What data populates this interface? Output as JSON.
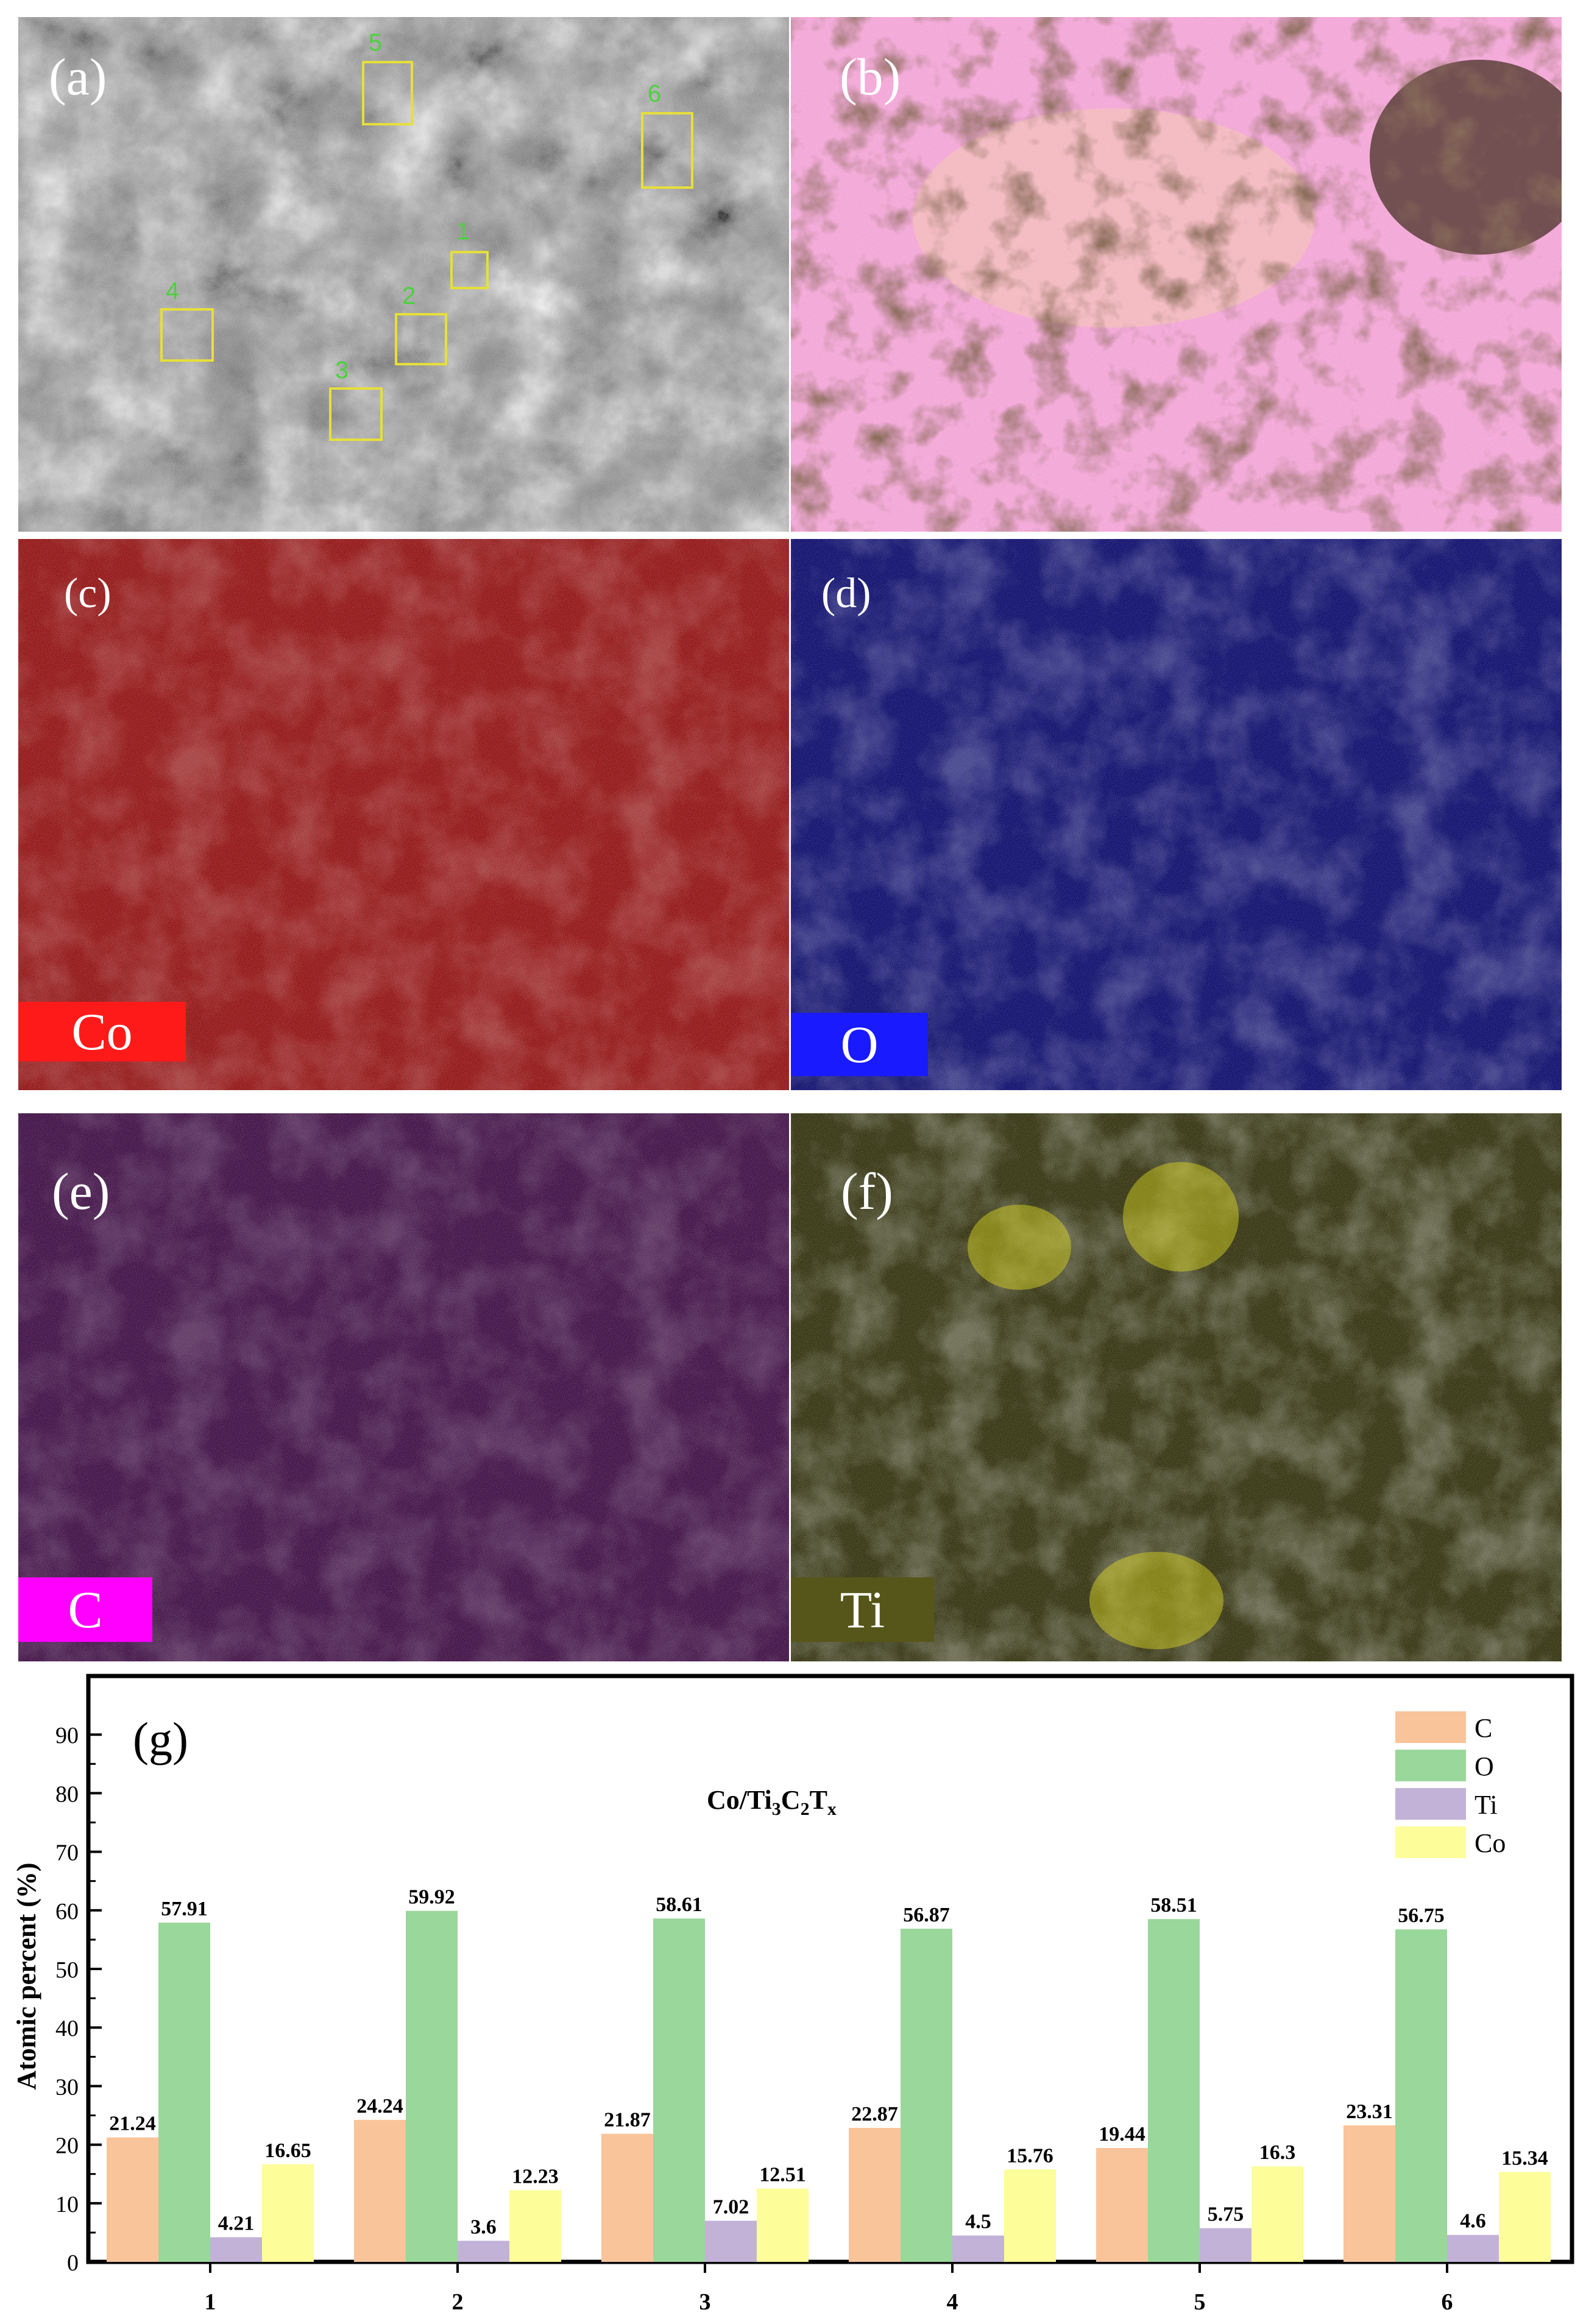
{
  "panels": {
    "a": {
      "label": "(a)",
      "roi_numbers": [
        "1",
        "2",
        "3",
        "4",
        "5",
        "6"
      ]
    },
    "b": {
      "label": "(b)"
    },
    "c": {
      "label": "(c)",
      "element": "Co",
      "tag_color": "#ff1a1a",
      "map_color": "#c01010"
    },
    "d": {
      "label": "(d)",
      "element": "O",
      "tag_color": "#1a1aff",
      "map_color": "#1e1ec8"
    },
    "e": {
      "label": "(e)",
      "element": "C",
      "tag_color": "#ff00ff",
      "map_color": "#a020b0"
    },
    "f": {
      "label": "(f)",
      "element": "Ti",
      "tag_color": "#56561a",
      "map_color": "#d8d41a"
    }
  },
  "chart_data": {
    "type": "bar",
    "panel_label": "(g)",
    "title": "Co/Ti3C2Tx",
    "title_parts": {
      "main": "Co/Ti",
      "s1": "3",
      "c": "C",
      "s2": "2",
      "t": "T",
      "s3": "x"
    },
    "ylabel": "Atomic percent (%)",
    "xlabel": "",
    "ylim": [
      0,
      100
    ],
    "yticks": [
      0,
      10,
      20,
      30,
      40,
      50,
      60,
      70,
      80,
      90
    ],
    "grid": false,
    "legend_position": "top-right",
    "categories": [
      "1",
      "2",
      "3",
      "4",
      "5",
      "6"
    ],
    "series": [
      {
        "name": "C",
        "color": "#f9c49a",
        "values": [
          21.24,
          24.24,
          21.87,
          22.87,
          19.44,
          23.31
        ]
      },
      {
        "name": "O",
        "color": "#9ad79a",
        "values": [
          57.91,
          59.92,
          58.61,
          56.87,
          58.51,
          56.75
        ]
      },
      {
        "name": "Ti",
        "color": "#c2b2d8",
        "values": [
          4.21,
          3.6,
          7.02,
          4.5,
          5.75,
          4.6
        ]
      },
      {
        "name": "Co",
        "color": "#fdfd9a",
        "values": [
          16.65,
          12.23,
          12.51,
          15.76,
          16.3,
          15.34
        ]
      }
    ],
    "data_labels": [
      [
        "21.24",
        "24.24",
        "21.87",
        "22.87",
        "19.44",
        "23.31"
      ],
      [
        "57.91",
        "59.92",
        "58.61",
        "56.87",
        "58.51",
        "56.75"
      ],
      [
        "4.21",
        "3.6",
        "7.02",
        "4.5",
        "5.75",
        "4.6"
      ],
      [
        "16.65",
        "12.23",
        "12.51",
        "15.76",
        "16.3",
        "15.34"
      ]
    ]
  }
}
